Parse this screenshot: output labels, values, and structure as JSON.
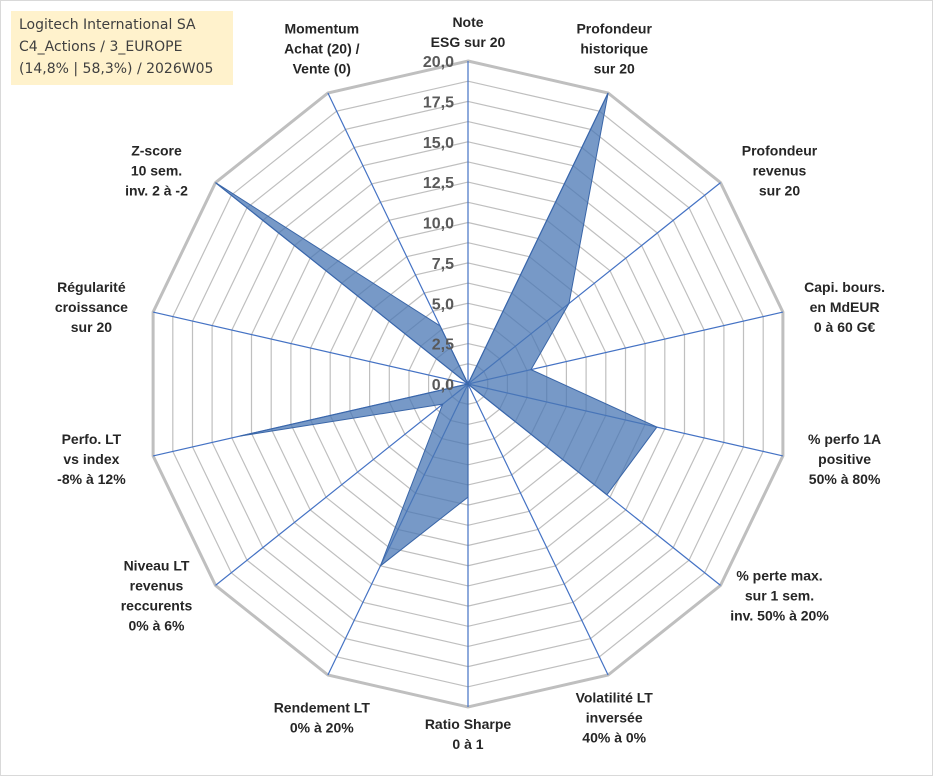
{
  "title_box": {
    "line1": "Logitech International SA",
    "line2": "C4_Actions / 3_EUROPE",
    "line3": "(14,8% | 58,3%) / 2026W05"
  },
  "colors": {
    "series_fill": "#4a77b4",
    "series_line": "#3a66a8",
    "grid": "#bfbfbf",
    "spoke": "#4472c4",
    "title_bg": "#fff2cc"
  },
  "chart_data": {
    "type": "radar",
    "title": "",
    "rmin": 0,
    "rmax": 20,
    "ticks": [
      "0,0",
      "2,5",
      "5,0",
      "7,5",
      "10,0",
      "12,5",
      "15,0",
      "17,5",
      "20,0"
    ],
    "tick_values": [
      0,
      2.5,
      5,
      7.5,
      10,
      12.5,
      15,
      17.5,
      20
    ],
    "grid": true,
    "categories": [
      [
        "Note",
        "ESG sur 20"
      ],
      [
        "Profondeur",
        "historique",
        "sur 20"
      ],
      [
        "Profondeur",
        "revenus",
        "sur 20"
      ],
      [
        "Capi. bours.",
        "en MdEUR",
        "0 à 60 G€"
      ],
      [
        "% perfo 1A",
        "positive",
        "50% à 80%"
      ],
      [
        "% perte max.",
        "sur 1 sem.",
        "inv. 50% à 20%"
      ],
      [
        "Volatilité LT",
        "inversée",
        "40% à 0%"
      ],
      [
        "Ratio Sharpe",
        "0 à 1"
      ],
      [
        "Rendement LT",
        "0% à 20%"
      ],
      [
        "Niveau LT",
        "revenus",
        "reccurents",
        "0% à 6%"
      ],
      [
        "Perfo. LT",
        "vs index",
        "-8% à 12%"
      ],
      [
        "Régularité",
        "croissance",
        "sur 20"
      ],
      [
        "Z-score",
        "10 sem.",
        "inv. 2 à -2"
      ],
      [
        "Momentum",
        "Achat (20) /",
        "Vente (0)"
      ]
    ],
    "series": [
      {
        "values": [
          0,
          20,
          8,
          4,
          12,
          11,
          0,
          7,
          12.5,
          2,
          14.5,
          0,
          20,
          4
        ]
      }
    ]
  }
}
